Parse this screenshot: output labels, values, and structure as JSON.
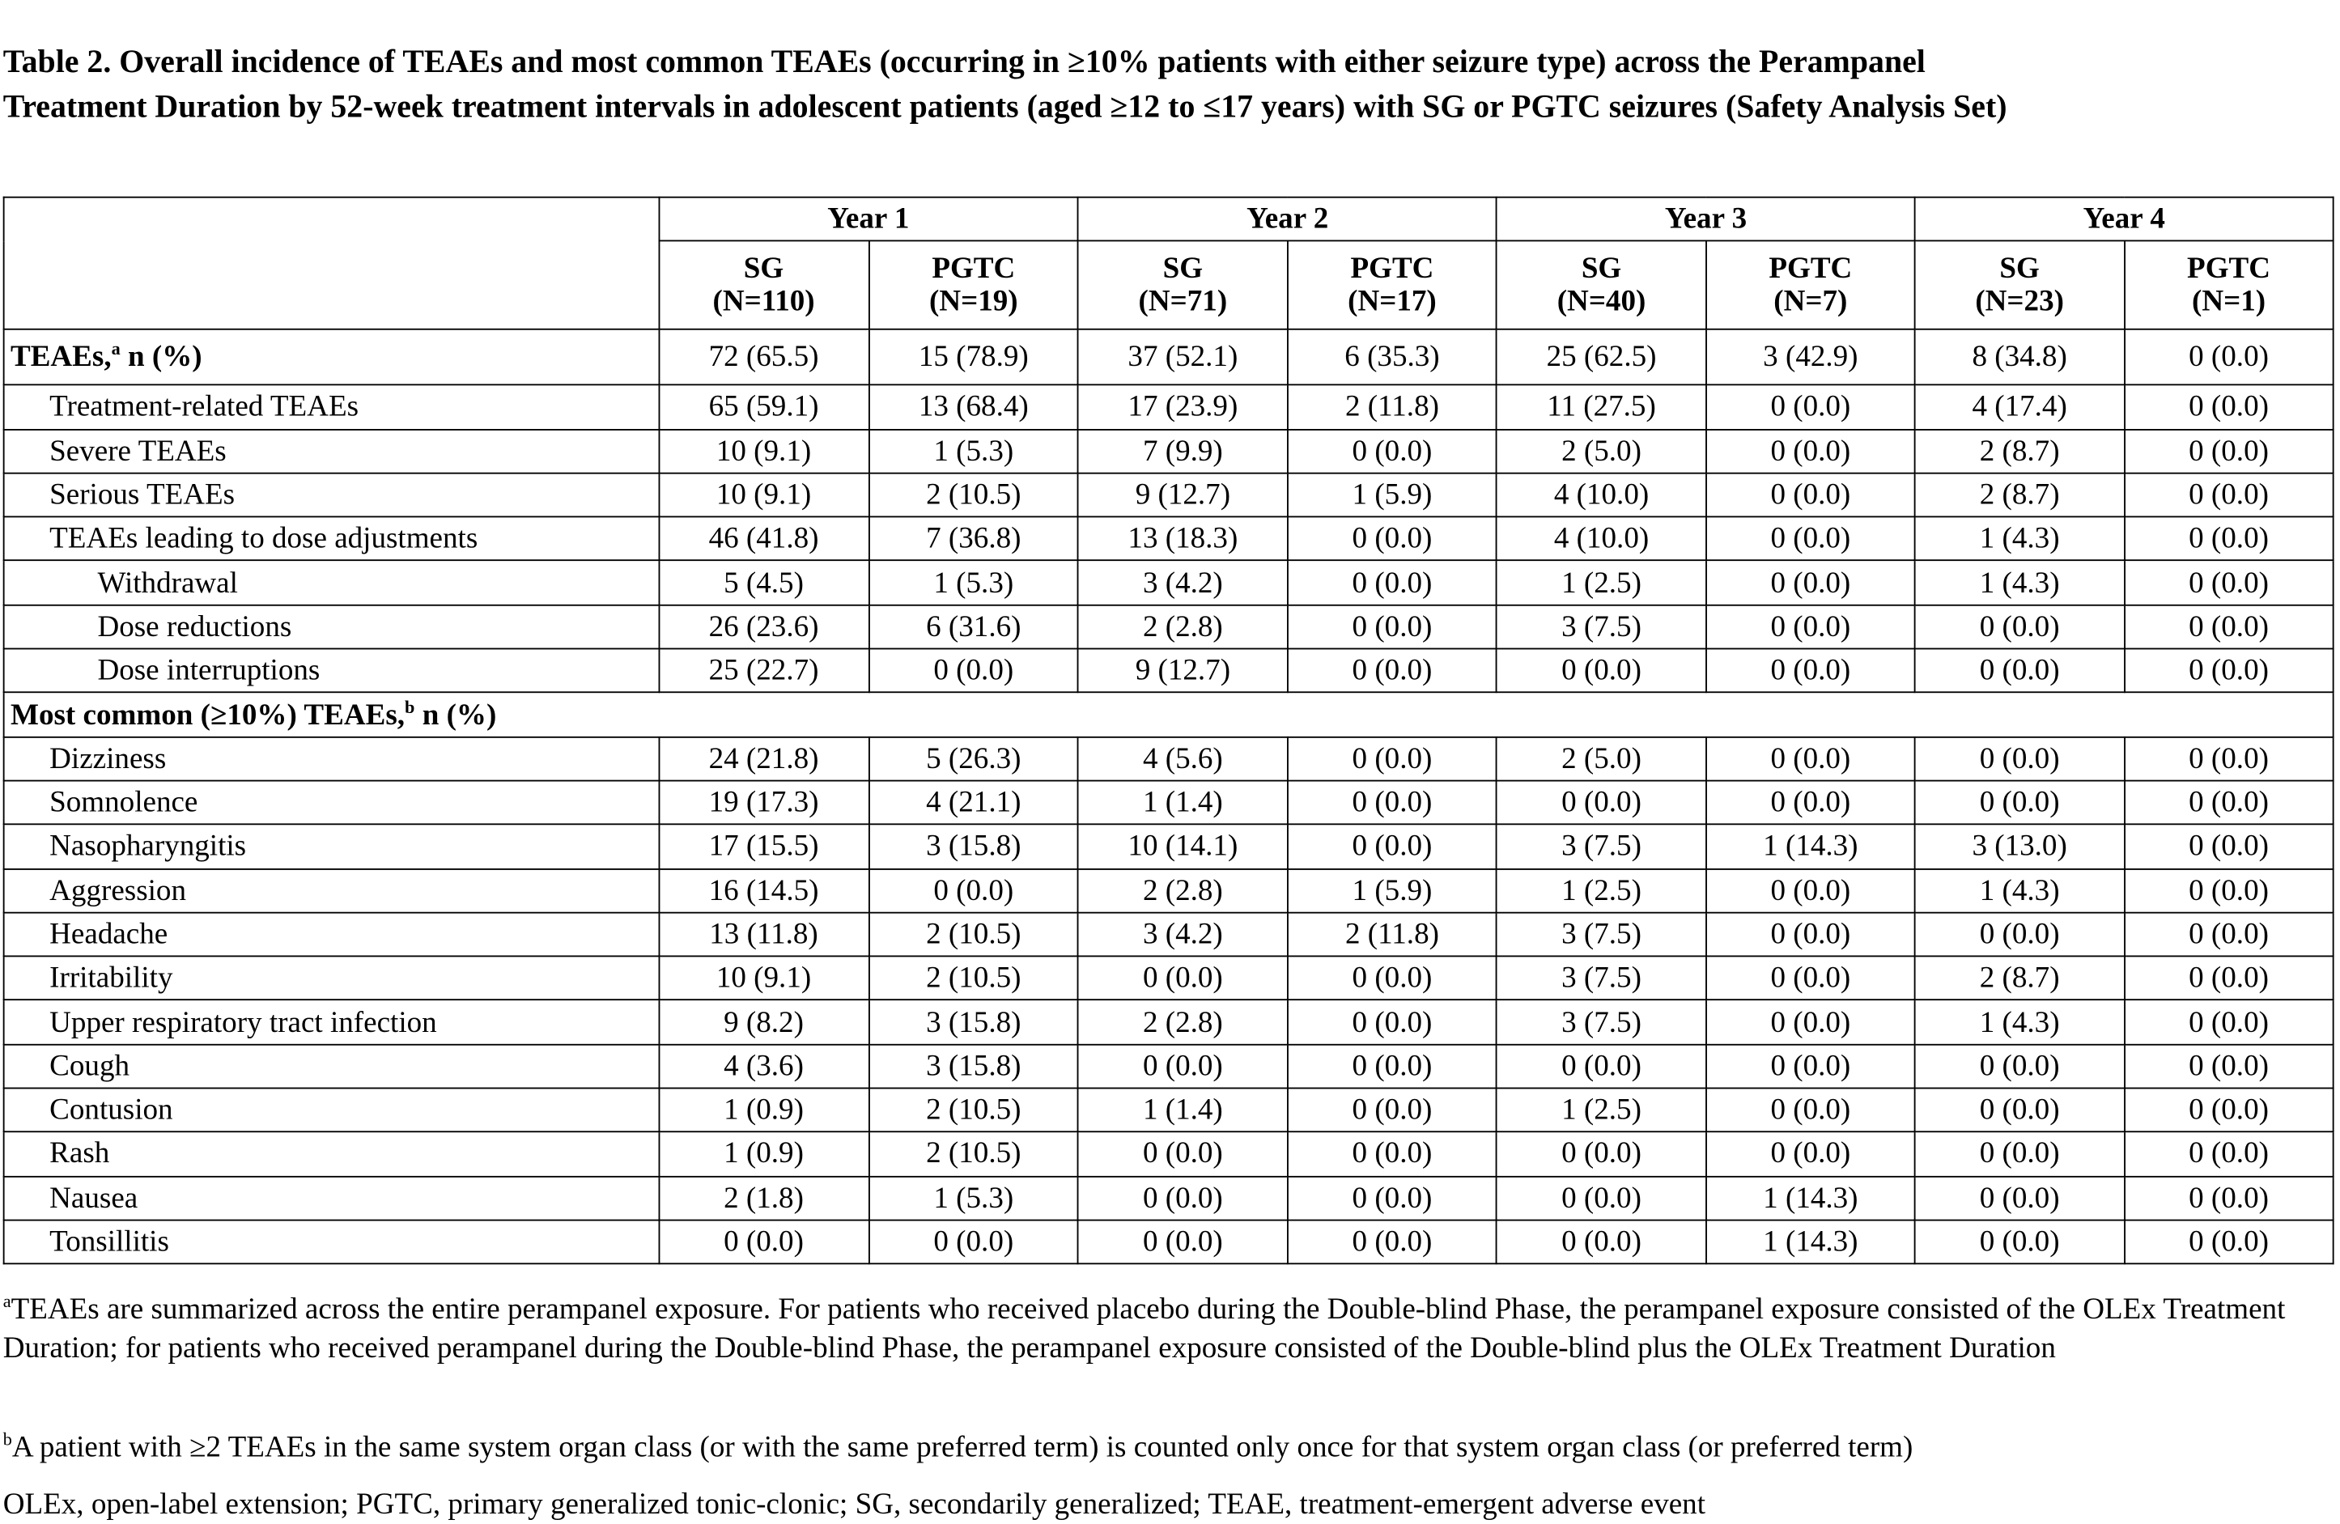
{
  "title_line1": "Table 2. Overall incidence of TEAEs and most common TEAEs (occurring in ≥10% patients with either seizure type) across the Perampanel",
  "title_line2": "Treatment Duration by 52-week treatment intervals in adolescent patients (aged ≥12 to ≤17 years) with SG or PGTC seizures (Safety Analysis Set)",
  "years": [
    "Year 1",
    "Year 2",
    "Year 3",
    "Year 4"
  ],
  "columns": [
    [
      "SG",
      "(N=110)"
    ],
    [
      "PGTC",
      "(N=19)"
    ],
    [
      "SG",
      "(N=71)"
    ],
    [
      "PGTC",
      "(N=17)"
    ],
    [
      "SG",
      "(N=40)"
    ],
    [
      "PGTC",
      "(N=7)"
    ],
    [
      "SG",
      "(N=23)"
    ],
    [
      "PGTC",
      "(N=1)"
    ]
  ],
  "rows": [
    {
      "label": "TEAEs,",
      "sup": "a",
      "suffix": " n (%)",
      "style": "bold",
      "values": [
        "72 (65.5)",
        "15 (78.9)",
        "37 (52.1)",
        "6 (35.3)",
        "25 (62.5)",
        "3 (42.9)",
        "8 (34.8)",
        "0 (0.0)"
      ]
    },
    {
      "label": "Treatment-related TEAEs",
      "style": "i1",
      "values": [
        "65 (59.1)",
        "13 (68.4)",
        "17 (23.9)",
        "2 (11.8)",
        "11 (27.5)",
        "0 (0.0)",
        "4 (17.4)",
        "0 (0.0)"
      ]
    },
    {
      "label": "Severe TEAEs",
      "style": "i1",
      "values": [
        "10 (9.1)",
        "1 (5.3)",
        "7 (9.9)",
        "0 (0.0)",
        "2 (5.0)",
        "0 (0.0)",
        "2 (8.7)",
        "0 (0.0)"
      ]
    },
    {
      "label": "Serious TEAEs",
      "style": "i1",
      "values": [
        "10 (9.1)",
        "2 (10.5)",
        "9 (12.7)",
        "1 (5.9)",
        "4 (10.0)",
        "0 (0.0)",
        "2 (8.7)",
        "0 (0.0)"
      ]
    },
    {
      "label": "TEAEs leading to dose adjustments",
      "style": "i1",
      "values": [
        "46 (41.8)",
        "7 (36.8)",
        "13 (18.3)",
        "0 (0.0)",
        "4 (10.0)",
        "0 (0.0)",
        "1 (4.3)",
        "0 (0.0)"
      ]
    },
    {
      "label": "Withdrawal",
      "style": "i2",
      "values": [
        "5 (4.5)",
        "1 (5.3)",
        "3 (4.2)",
        "0 (0.0)",
        "1 (2.5)",
        "0 (0.0)",
        "1 (4.3)",
        "0 (0.0)"
      ]
    },
    {
      "label": "Dose reductions",
      "style": "i2",
      "values": [
        "26 (23.6)",
        "6 (31.6)",
        "2 (2.8)",
        "0 (0.0)",
        "3 (7.5)",
        "0 (0.0)",
        "0 (0.0)",
        "0 (0.0)"
      ]
    },
    {
      "label": "Dose interruptions",
      "style": "i2",
      "values": [
        "25 (22.7)",
        "0 (0.0)",
        "9 (12.7)",
        "0 (0.0)",
        "0 (0.0)",
        "0 (0.0)",
        "0 (0.0)",
        "0 (0.0)"
      ]
    },
    {
      "label": "Most common (≥10%) TEAEs,",
      "sup": "b",
      "suffix": " n (%)",
      "style": "section"
    },
    {
      "label": "Dizziness",
      "style": "i1",
      "values": [
        "24 (21.8)",
        "5 (26.3)",
        "4 (5.6)",
        "0 (0.0)",
        "2 (5.0)",
        "0 (0.0)",
        "0 (0.0)",
        "0 (0.0)"
      ]
    },
    {
      "label": "Somnolence",
      "style": "i1",
      "values": [
        "19 (17.3)",
        "4 (21.1)",
        "1 (1.4)",
        "0 (0.0)",
        "0 (0.0)",
        "0 (0.0)",
        "0 (0.0)",
        "0 (0.0)"
      ]
    },
    {
      "label": "Nasopharyngitis",
      "style": "i1",
      "values": [
        "17 (15.5)",
        "3 (15.8)",
        "10 (14.1)",
        "0 (0.0)",
        "3 (7.5)",
        "1 (14.3)",
        "3 (13.0)",
        "0 (0.0)"
      ]
    },
    {
      "label": "Aggression",
      "style": "i1",
      "values": [
        "16 (14.5)",
        "0 (0.0)",
        "2 (2.8)",
        "1 (5.9)",
        "1 (2.5)",
        "0 (0.0)",
        "1 (4.3)",
        "0 (0.0)"
      ]
    },
    {
      "label": "Headache",
      "style": "i1",
      "values": [
        "13 (11.8)",
        "2 (10.5)",
        "3 (4.2)",
        "2 (11.8)",
        "3 (7.5)",
        "0 (0.0)",
        "0 (0.0)",
        "0 (0.0)"
      ]
    },
    {
      "label": "Irritability",
      "style": "i1",
      "values": [
        "10 (9.1)",
        "2 (10.5)",
        "0 (0.0)",
        "0 (0.0)",
        "3 (7.5)",
        "0 (0.0)",
        "2 (8.7)",
        "0 (0.0)"
      ]
    },
    {
      "label": "Upper respiratory tract infection",
      "style": "i1",
      "values": [
        "9 (8.2)",
        "3 (15.8)",
        "2 (2.8)",
        "0 (0.0)",
        "3 (7.5)",
        "0 (0.0)",
        "1 (4.3)",
        "0 (0.0)"
      ]
    },
    {
      "label": "Cough",
      "style": "i1",
      "values": [
        "4 (3.6)",
        "3 (15.8)",
        "0 (0.0)",
        "0 (0.0)",
        "0 (0.0)",
        "0 (0.0)",
        "0 (0.0)",
        "0 (0.0)"
      ]
    },
    {
      "label": "Contusion",
      "style": "i1",
      "values": [
        "1 (0.9)",
        "2 (10.5)",
        "1 (1.4)",
        "0 (0.0)",
        "1 (2.5)",
        "0 (0.0)",
        "0 (0.0)",
        "0 (0.0)"
      ]
    },
    {
      "label": "Rash",
      "style": "i1",
      "values": [
        "1 (0.9)",
        "2 (10.5)",
        "0 (0.0)",
        "0 (0.0)",
        "0 (0.0)",
        "0 (0.0)",
        "0 (0.0)",
        "0 (0.0)"
      ]
    },
    {
      "label": "Nausea",
      "style": "i1",
      "values": [
        "2 (1.8)",
        "1 (5.3)",
        "0 (0.0)",
        "0 (0.0)",
        "0 (0.0)",
        "1 (14.3)",
        "0 (0.0)",
        "0 (0.0)"
      ]
    },
    {
      "label": "Tonsillitis",
      "style": "i1",
      "values": [
        "0 (0.0)",
        "0 (0.0)",
        "0 (0.0)",
        "0 (0.0)",
        "0 (0.0)",
        "1 (14.3)",
        "0 (0.0)",
        "0 (0.0)"
      ]
    }
  ],
  "footnotes": [
    {
      "sup": "a",
      "text": "TEAEs are summarized across the entire perampanel exposure. For patients who received placebo during the Double-blind Phase, the perampanel exposure consisted of the OLEx Treatment Duration; for patients who received perampanel during the Double-blind Phase, the perampanel exposure consisted of the Double-blind plus the OLEx Treatment Duration"
    },
    {
      "sup": "b",
      "text": "A patient with ≥2 TEAEs in the same system organ class (or with the same preferred term) is counted only once for that system organ class (or preferred term)"
    },
    {
      "sup": "",
      "text": "OLEx, open-label extension; PGTC, primary generalized tonic-clonic; SG, secondarily generalized; TEAE, treatment-emergent adverse event"
    }
  ]
}
